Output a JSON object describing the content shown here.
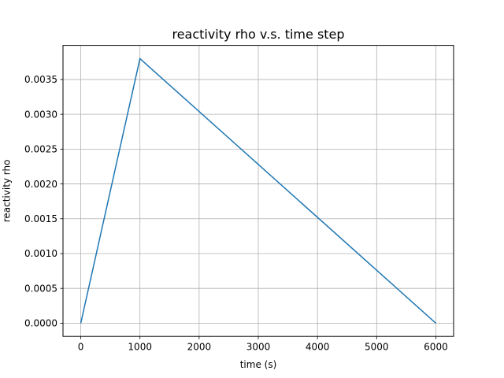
{
  "chart_data": {
    "type": "line",
    "title": "reactivity rho v.s. time step",
    "xlabel": "time (s)",
    "ylabel": "reactivity rho",
    "xlim": [
      -300,
      6300
    ],
    "ylim": [
      -0.00019,
      0.00399
    ],
    "xticks": [
      0,
      1000,
      2000,
      3000,
      4000,
      5000,
      6000
    ],
    "xtick_labels": [
      "0",
      "1000",
      "2000",
      "3000",
      "4000",
      "5000",
      "6000"
    ],
    "yticks": [
      0,
      0.0005,
      0.001,
      0.0015,
      0.002,
      0.0025,
      0.003,
      0.0035
    ],
    "ytick_labels": [
      "0.0000",
      "0.0005",
      "0.0010",
      "0.0015",
      "0.0020",
      "0.0025",
      "0.0030",
      "0.0035"
    ],
    "grid": true,
    "series": [
      {
        "x": [
          0,
          1000,
          6000
        ],
        "y": [
          0.0,
          0.0038,
          0.0
        ],
        "color": "#1f77b4"
      }
    ]
  }
}
